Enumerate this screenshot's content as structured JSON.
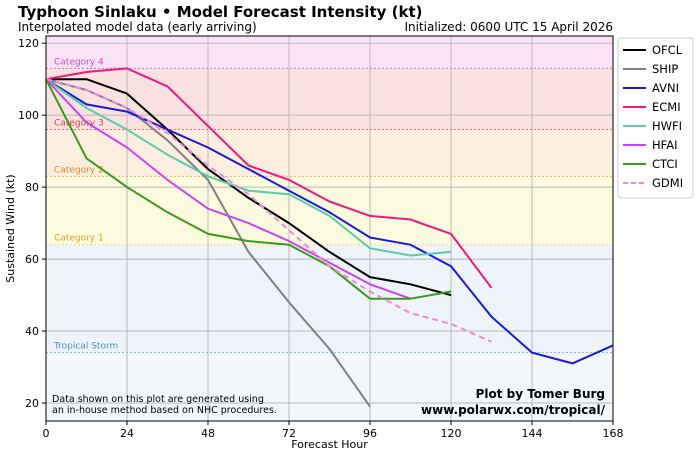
{
  "chart_data": {
    "type": "line",
    "title": "Typhoon Sinlaku • Model Forecast Intensity (kt)",
    "subtitle": "Interpolated model data (early arriving)",
    "initialized": "Initialized: 0600 UTC 15 April 2026",
    "xlabel": "Forecast Hour",
    "ylabel": "Sustained Wind (kt)",
    "xlim": [
      0,
      168
    ],
    "ylim": [
      15,
      122
    ],
    "xticks": [
      0,
      24,
      48,
      72,
      96,
      120,
      144,
      168
    ],
    "yticks": [
      20,
      40,
      60,
      80,
      100,
      120
    ],
    "categories": [
      {
        "label": "Tropical Storm",
        "min": 34,
        "max": 64,
        "fill": "#eef4fa",
        "line": "#7fb2dc",
        "text_color": "#4a90c8"
      },
      {
        "label": "Category 1",
        "min": 64,
        "max": 83,
        "fill": "#fdfbdf",
        "line": "#f2d58a",
        "text_color": "#d9a429"
      },
      {
        "label": "Category 2",
        "min": 83,
        "max": 96,
        "fill": "#fcefe0",
        "line": "#f4b06a",
        "text_color": "#e08a2c"
      },
      {
        "label": "Category 3",
        "min": 96,
        "max": 113,
        "fill": "#f9e2e0",
        "line": "#ea6b6b",
        "text_color": "#d64545"
      },
      {
        "label": "Category 4",
        "min": 113,
        "max": 122,
        "fill": "#fbe2f6",
        "line": "#d270d2",
        "text_color": "#c44fc4"
      }
    ],
    "series": [
      {
        "name": "OFCL",
        "color": "#000000",
        "dash": false,
        "x": [
          0,
          12,
          24,
          36,
          48,
          60,
          72,
          84,
          96,
          108,
          120
        ],
        "values": [
          110,
          110,
          106,
          96,
          85,
          77,
          70,
          62,
          55,
          53,
          50
        ]
      },
      {
        "name": "SHIP",
        "color": "#808080",
        "dash": false,
        "x": [
          0,
          12,
          24,
          36,
          48,
          60,
          72,
          84,
          96
        ],
        "values": [
          110,
          107,
          102,
          93,
          82,
          62,
          48,
          35,
          19
        ]
      },
      {
        "name": "AVNI",
        "color": "#1a1adc",
        "dash": false,
        "x": [
          0,
          12,
          24,
          36,
          48,
          60,
          72,
          84,
          96,
          108,
          120,
          132,
          144,
          156,
          168
        ],
        "values": [
          110,
          103,
          101,
          96,
          91,
          85,
          79,
          73,
          66,
          64,
          58,
          44,
          34,
          31,
          36
        ]
      },
      {
        "name": "ECMI",
        "color": "#f0197d",
        "dash": false,
        "x": [
          0,
          12,
          24,
          36,
          48,
          60,
          72,
          84,
          96,
          108,
          120,
          132
        ],
        "values": [
          110,
          112,
          113,
          108,
          97,
          86,
          82,
          76,
          72,
          71,
          67,
          52
        ]
      },
      {
        "name": "HWFI",
        "color": "#5ccca8",
        "dash": false,
        "x": [
          0,
          12,
          24,
          36,
          48,
          60,
          72,
          84,
          96,
          108,
          120
        ],
        "values": [
          110,
          102,
          96,
          89,
          83,
          79,
          78,
          72,
          63,
          61,
          62
        ]
      },
      {
        "name": "HFAI",
        "color": "#cc44ee",
        "dash": false,
        "x": [
          0,
          12,
          24,
          36,
          48,
          60,
          72,
          84,
          96,
          108
        ],
        "values": [
          110,
          98,
          91,
          82,
          74,
          70,
          65,
          59,
          53,
          49
        ]
      },
      {
        "name": "CTCI",
        "color": "#3a9a1a",
        "dash": false,
        "x": [
          0,
          12,
          24,
          36,
          48,
          60,
          72,
          84,
          96,
          108,
          120
        ],
        "values": [
          110,
          88,
          80,
          73,
          67,
          65,
          64,
          58,
          49,
          49,
          51
        ]
      },
      {
        "name": "GDMI",
        "color": "#ee88dd",
        "dash": true,
        "x": [
          0,
          12,
          24,
          36,
          48,
          60,
          72,
          84,
          96,
          108,
          120,
          132
        ],
        "values": [
          110,
          107,
          102,
          95,
          86,
          78,
          68,
          58,
          51,
          45,
          42,
          37
        ]
      }
    ],
    "note_lines": [
      "Data shown on this plot are generated using",
      "an in-house method based on NHC procedures."
    ],
    "credit_lines": [
      "Plot by Tomer Burg",
      "www.polarwx.com/tropical/"
    ],
    "legend_position": "right",
    "grid": true
  }
}
